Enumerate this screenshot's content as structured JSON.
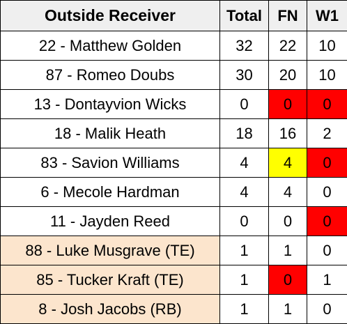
{
  "colors": {
    "header_bg": "#efefef",
    "default_bg": "#ffffff",
    "highlight_peach": "#fce5cd",
    "red": "#ff0000",
    "yellow": "#ffff00"
  },
  "table": {
    "headers": {
      "name": "Outside Receiver",
      "total": "Total",
      "fn": "FN",
      "w1": "W1"
    },
    "rows": [
      {
        "name": "22 - Matthew Golden",
        "total": "32",
        "fn": "22",
        "w1": "10",
        "name_bg": "#ffffff",
        "fn_bg": "#ffffff",
        "w1_bg": "#ffffff"
      },
      {
        "name": "87 - Romeo Doubs",
        "total": "30",
        "fn": "20",
        "w1": "10",
        "name_bg": "#ffffff",
        "fn_bg": "#ffffff",
        "w1_bg": "#ffffff"
      },
      {
        "name": "13 - Dontayvion Wicks",
        "total": "0",
        "fn": "0",
        "w1": "0",
        "name_bg": "#ffffff",
        "fn_bg": "#ff0000",
        "w1_bg": "#ff0000"
      },
      {
        "name": "18 - Malik Heath",
        "total": "18",
        "fn": "16",
        "w1": "2",
        "name_bg": "#ffffff",
        "fn_bg": "#ffffff",
        "w1_bg": "#ffffff"
      },
      {
        "name": "83 - Savion Williams",
        "total": "4",
        "fn": "4",
        "w1": "0",
        "name_bg": "#ffffff",
        "fn_bg": "#ffff00",
        "w1_bg": "#ff0000"
      },
      {
        "name": "6 - Mecole Hardman",
        "total": "4",
        "fn": "4",
        "w1": "0",
        "name_bg": "#ffffff",
        "fn_bg": "#ffffff",
        "w1_bg": "#ffffff"
      },
      {
        "name": "11 - Jayden Reed",
        "total": "0",
        "fn": "0",
        "w1": "0",
        "name_bg": "#ffffff",
        "fn_bg": "#ffffff",
        "w1_bg": "#ff0000"
      },
      {
        "name": "88 - Luke Musgrave (TE)",
        "total": "1",
        "fn": "1",
        "w1": "0",
        "name_bg": "#fce5cd",
        "fn_bg": "#ffffff",
        "w1_bg": "#ffffff"
      },
      {
        "name": "85 - Tucker Kraft (TE)",
        "total": "1",
        "fn": "0",
        "w1": "1",
        "name_bg": "#fce5cd",
        "fn_bg": "#ff0000",
        "w1_bg": "#ffffff"
      },
      {
        "name": "8 - Josh Jacobs (RB)",
        "total": "1",
        "fn": "1",
        "w1": "0",
        "name_bg": "#fce5cd",
        "fn_bg": "#ffffff",
        "w1_bg": "#ffffff"
      }
    ]
  }
}
